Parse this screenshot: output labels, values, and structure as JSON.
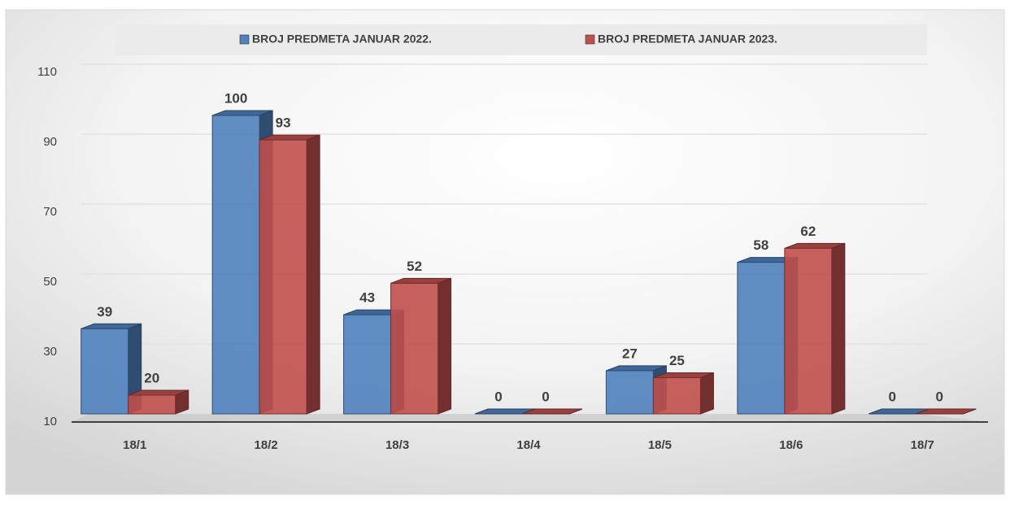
{
  "chart_data": {
    "type": "bar3d",
    "categories": [
      "18/1",
      "18/2",
      "18/3",
      "18/4",
      "18/5",
      "18/6",
      "18/7"
    ],
    "series": [
      {
        "name": "BROJ PREDMETA JANUAR 2022.",
        "color": "#4f81bd",
        "values": [
          39,
          100,
          43,
          0,
          27,
          58,
          0
        ]
      },
      {
        "name": "BROJ PREDMETA JANUAR 2023.",
        "color": "#c0504d",
        "values": [
          20,
          93,
          52,
          0,
          25,
          62,
          0
        ]
      }
    ],
    "ylim": [
      10,
      110
    ],
    "yticks": [
      10,
      30,
      50,
      70,
      90,
      110
    ],
    "grid": true,
    "legend": "top"
  }
}
